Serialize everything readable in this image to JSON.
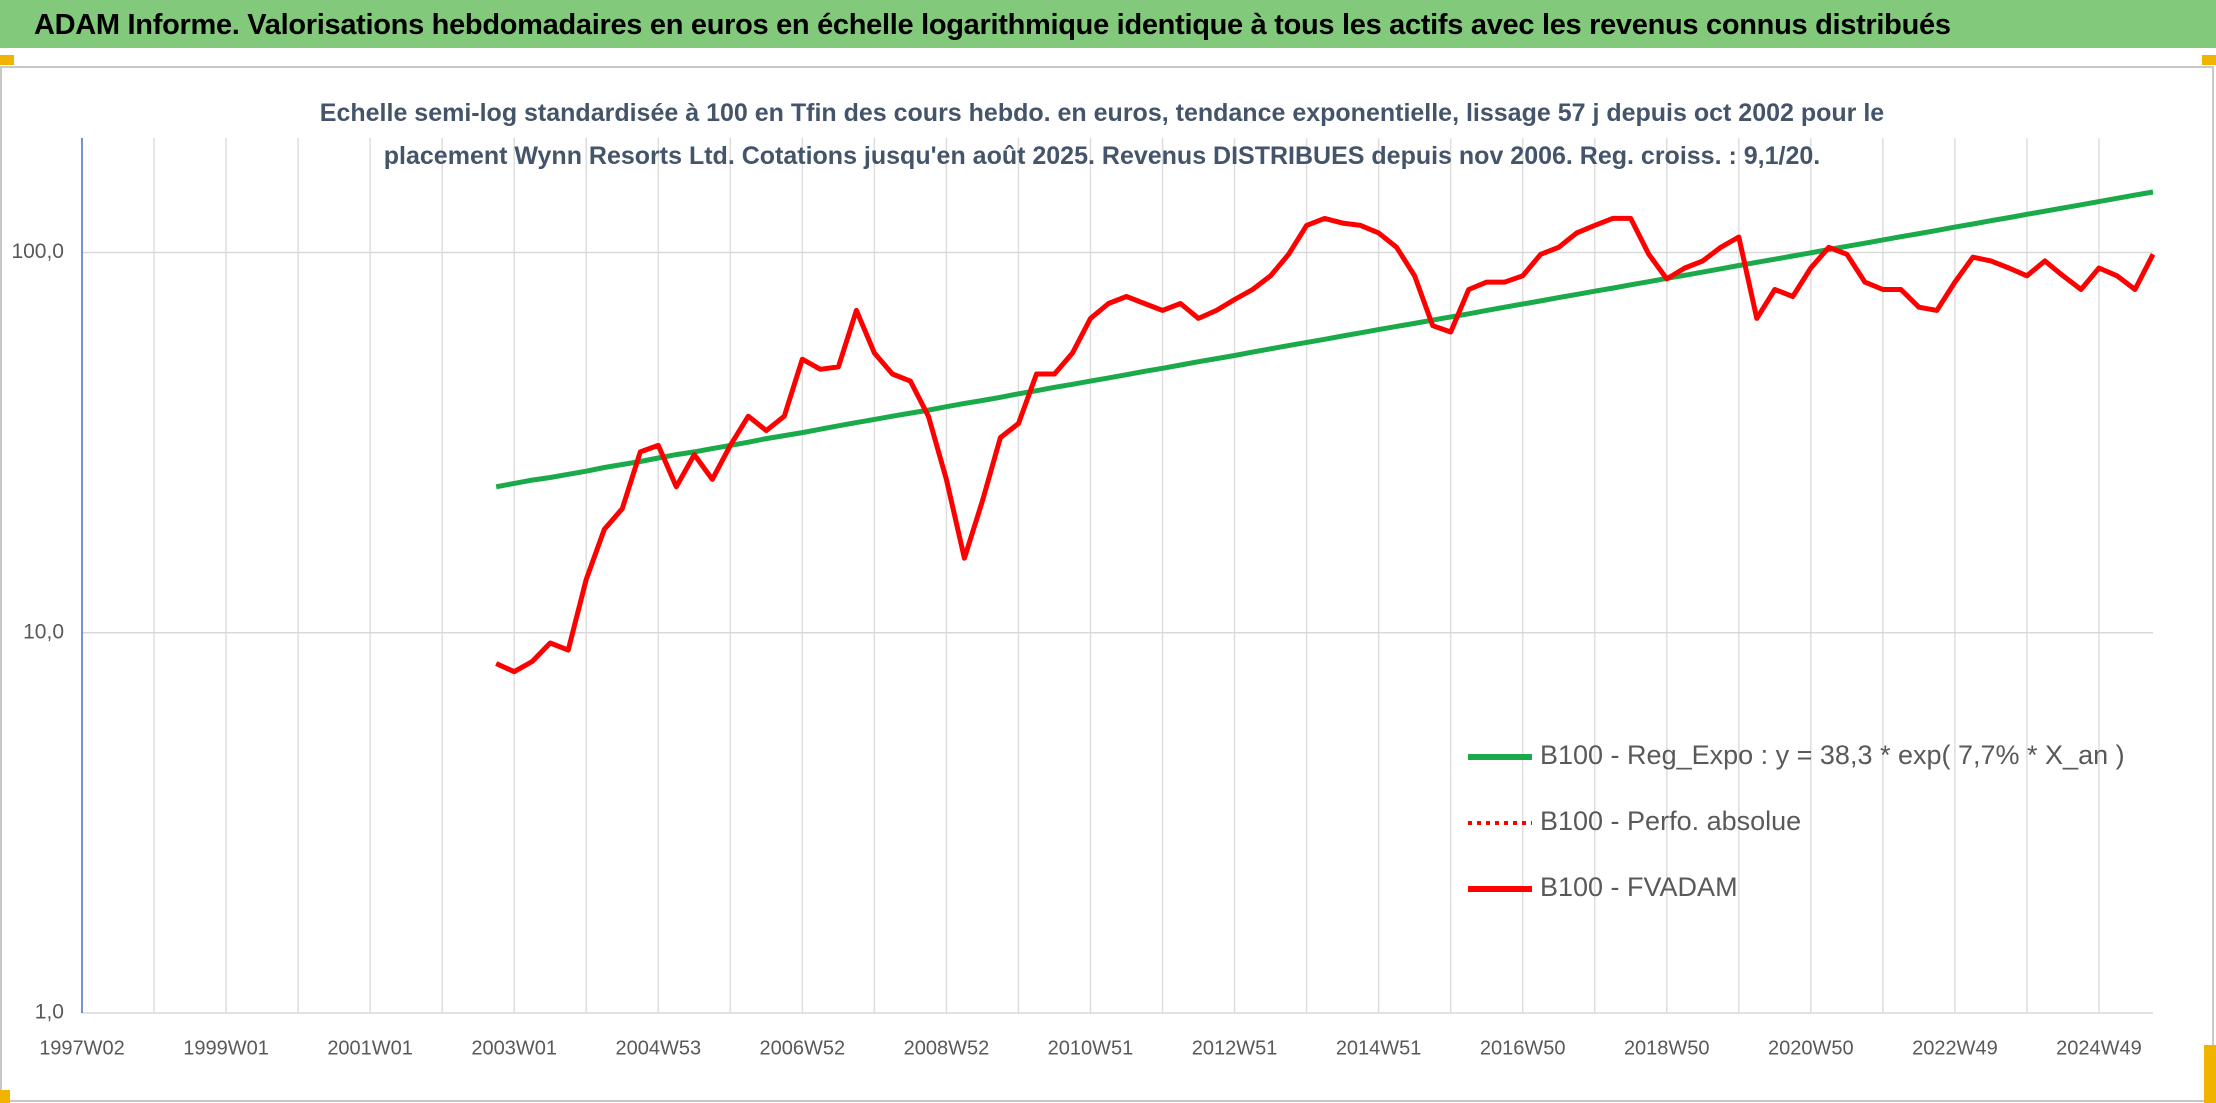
{
  "header": {
    "title": "ADAM Informe. Valorisations hebdomadaires en euros en échelle logarithmique identique à tous les actifs avec les revenus connus distribués"
  },
  "chart_data": {
    "type": "line",
    "title": "Echelle semi-log standardisée à 100 en Tfin des cours hebdo. en euros, tendance exponentielle, lissage 57 j depuis oct 2002 pour le placement Wynn Resorts Ltd. Cotations jusqu'en août 2025. Revenus DISTRIBUES depuis nov 2006. Reg. croiss. : 9,1/20.",
    "log_scale": true,
    "grid": true,
    "legend": "lower right",
    "ylim": [
      1,
      200
    ],
    "yticks": [
      {
        "value": 1,
        "label": "1,0"
      },
      {
        "value": 10,
        "label": "10,0"
      },
      {
        "value": 100,
        "label": "100,0"
      }
    ],
    "categories": [
      "1997W02",
      null,
      null,
      null,
      null,
      null,
      null,
      null,
      "1999W01",
      null,
      null,
      null,
      null,
      null,
      null,
      null,
      "2001W01",
      null,
      null,
      null,
      null,
      null,
      null,
      null,
      "2003W01",
      null,
      null,
      null,
      null,
      null,
      null,
      null,
      "2004W53",
      null,
      null,
      null,
      null,
      null,
      null,
      null,
      "2006W52",
      null,
      null,
      null,
      null,
      null,
      null,
      null,
      "2008W52",
      null,
      null,
      null,
      null,
      null,
      null,
      null,
      "2010W51",
      null,
      null,
      null,
      null,
      null,
      null,
      null,
      "2012W51",
      null,
      null,
      null,
      null,
      null,
      null,
      null,
      "2014W51",
      null,
      null,
      null,
      null,
      null,
      null,
      null,
      "2016W50",
      null,
      null,
      null,
      null,
      null,
      null,
      null,
      "2018W50",
      null,
      null,
      null,
      null,
      null,
      null,
      null,
      "2020W50",
      null,
      null,
      null,
      null,
      null,
      null,
      null,
      "2022W49",
      null,
      null,
      null,
      null,
      null,
      null,
      null,
      "2024W49",
      null,
      null,
      null
    ],
    "series": [
      {
        "name": "B100 - Reg_Expo : y = 38,3 * exp( 7,7% *  X_an )",
        "color": "#1aaa4a",
        "line_style": "solid",
        "values": [
          null,
          null,
          null,
          null,
          null,
          null,
          null,
          null,
          null,
          null,
          null,
          null,
          null,
          null,
          null,
          null,
          null,
          null,
          null,
          null,
          null,
          null,
          null,
          24.2,
          24.7,
          25.2,
          25.6,
          26.1,
          26.6,
          27.2,
          27.7,
          28.2,
          28.8,
          29.4,
          29.9,
          30.5,
          31.1,
          31.7,
          32.4,
          33.0,
          33.6,
          34.3,
          35.0,
          35.7,
          36.4,
          37.1,
          37.8,
          38.5,
          39.3,
          40.1,
          40.8,
          41.6,
          42.5,
          43.3,
          44.2,
          45.0,
          45.9,
          46.8,
          47.7,
          48.7,
          49.6,
          50.6,
          51.6,
          52.6,
          53.6,
          54.7,
          55.8,
          56.9,
          58.0,
          59.1,
          60.3,
          61.5,
          62.7,
          63.9,
          65.1,
          66.4,
          67.7,
          69.0,
          70.4,
          71.8,
          73.2,
          74.6,
          76.1,
          77.6,
          79.1,
          80.6,
          82.2,
          83.8,
          85.5,
          87.1,
          88.8,
          90.6,
          92.4,
          94.2,
          96.0,
          97.9,
          99.8,
          101.8,
          103.8,
          105.8,
          107.9,
          110.0,
          112.1,
          114.3,
          116.6,
          118.8,
          121.2,
          123.5,
          126.0,
          128.4,
          130.9,
          133.5,
          136.1,
          138.8,
          141.5,
          144.2
        ]
      },
      {
        "name": "B100 - Perfo. absolue",
        "color": "#ff0000",
        "line_style": "dotted",
        "values": [
          null,
          null,
          null,
          null,
          null,
          null,
          null,
          null,
          null,
          null,
          null,
          null,
          null,
          null,
          null,
          null,
          null,
          null,
          null,
          null,
          null,
          null,
          null,
          null,
          null,
          null,
          null,
          null,
          null,
          null,
          null,
          null,
          null,
          null,
          null,
          null,
          null,
          null,
          null,
          null,
          null,
          null,
          null,
          null,
          null,
          null,
          null,
          null,
          null,
          null,
          null,
          null,
          null,
          null,
          null,
          null,
          null,
          null,
          null,
          null,
          null,
          null,
          null,
          null,
          null,
          null,
          null,
          null,
          null,
          null,
          null,
          null,
          null,
          null,
          null,
          null,
          null,
          null,
          null,
          null,
          null,
          null,
          null,
          null,
          null,
          null,
          null,
          null,
          null,
          null,
          null,
          null,
          null,
          null,
          null,
          null,
          null,
          null,
          null,
          null,
          null,
          null,
          null,
          null,
          null,
          null,
          null,
          null,
          null,
          null,
          null,
          null,
          null,
          null,
          null,
          null
        ]
      },
      {
        "name": "B100 - FVADAM",
        "color": "#ff0000",
        "line_style": "solid",
        "values": [
          null,
          null,
          null,
          null,
          null,
          null,
          null,
          null,
          null,
          null,
          null,
          null,
          null,
          null,
          null,
          null,
          null,
          null,
          null,
          null,
          null,
          null,
          null,
          8.3,
          7.9,
          8.4,
          9.4,
          9.0,
          13.8,
          18.7,
          21.2,
          29.9,
          31.1,
          24.2,
          29.4,
          25.3,
          31.1,
          37.1,
          34.0,
          37.1,
          52.4,
          49.3,
          50.0,
          70.4,
          54.4,
          47.9,
          45.9,
          37.1,
          25.3,
          15.7,
          22.2,
          32.6,
          35.5,
          47.9,
          47.9,
          54.4,
          67.1,
          73.4,
          76.6,
          73.4,
          70.4,
          73.4,
          67.1,
          70.4,
          75.2,
          79.9,
          86.8,
          98.9,
          117.8,
          122.9,
          119.5,
          117.8,
          112.6,
          103.2,
          86.8,
          64.2,
          61.8,
          79.9,
          83.6,
          83.6,
          86.8,
          98.9,
          103.2,
          112.6,
          117.8,
          122.9,
          122.9,
          98.9,
          85.2,
          91.0,
          95.0,
          103.2,
          109.8,
          67.1,
          79.9,
          76.6,
          91.0,
          103.2,
          98.9,
          83.6,
          79.9,
          79.9,
          71.8,
          70.4,
          83.6,
          97.2,
          95.0,
          91.0,
          86.8,
          95.0,
          86.8,
          79.9,
          91.0,
          86.8,
          79.9,
          98.9
        ]
      }
    ]
  }
}
